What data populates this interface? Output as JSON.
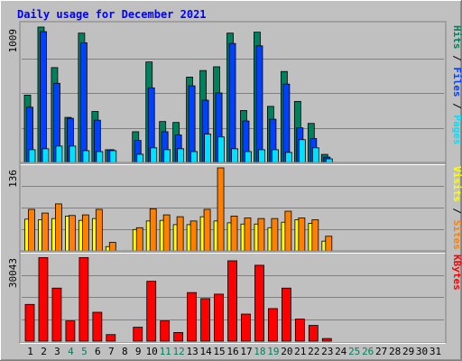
{
  "title": "Daily usage for December 2021",
  "days": [
    "1",
    "2",
    "3",
    "4",
    "5",
    "6",
    "7",
    "8",
    "9",
    "10",
    "11",
    "12",
    "13",
    "14",
    "15",
    "16",
    "17",
    "18",
    "19",
    "20",
    "21",
    "22",
    "23",
    "24",
    "25",
    "26",
    "27",
    "28",
    "29",
    "30",
    "31"
  ],
  "weekend_days": [
    "4",
    "5",
    "11",
    "12",
    "18",
    "19",
    "25",
    "26"
  ],
  "colors": {
    "background": "#C0C0C0",
    "title": "#0000FF",
    "weekday_label": "#000000",
    "weekend_label": "#00805C",
    "hits": "#00805C",
    "files": "#0040FF",
    "pages": "#00E0FF",
    "visits": "#FFFF00",
    "sites": "#FF8000",
    "kbytes": "#FF0000"
  },
  "chart_data": [
    {
      "type": "bar",
      "panel": "hits-files-pages",
      "ymax_label": "1009",
      "ylim": [
        0,
        1009
      ],
      "legend": {
        "pages": "Pages",
        "files": "Files",
        "hits": "Hits",
        "sep": "/"
      },
      "series": [
        {
          "name": "Hits",
          "key": "hits",
          "values": [
            502,
            1009,
            707,
            336,
            964,
            380,
            95,
            0,
            229,
            749,
            305,
            298,
            636,
            685,
            713,
            964,
            387,
            971,
            418,
            678,
            455,
            291,
            60,
            0,
            0,
            0,
            0,
            0,
            0,
            0,
            0
          ]
        },
        {
          "name": "Files",
          "key": "files",
          "values": [
            412,
            975,
            590,
            329,
            892,
            315,
            95,
            0,
            164,
            556,
            229,
            205,
            571,
            464,
            518,
            887,
            309,
            869,
            322,
            584,
            258,
            178,
            40,
            0,
            0,
            0,
            0,
            0,
            0,
            0,
            0
          ]
        },
        {
          "name": "Pages",
          "key": "pages",
          "values": [
            95,
            102,
            122,
            122,
            88,
            81,
            88,
            0,
            61,
            109,
            95,
            102,
            81,
            211,
            190,
            102,
            81,
            95,
            95,
            75,
            170,
            109,
            27,
            0,
            0,
            0,
            0,
            0,
            0,
            0,
            0
          ]
        }
      ]
    },
    {
      "type": "bar",
      "panel": "visits-sites",
      "ymax_label": "136",
      "ylim": [
        0,
        136
      ],
      "legend": {
        "sites": "Sites",
        "visits": "Visits",
        "sep": "/"
      },
      "series": [
        {
          "name": "Visits",
          "key": "visits",
          "values": [
            52,
            51,
            53,
            57,
            50,
            53,
            7,
            0,
            35,
            49,
            50,
            43,
            43,
            56,
            49,
            46,
            44,
            44,
            38,
            47,
            51,
            45,
            16,
            0,
            0,
            0,
            0,
            0,
            0,
            0,
            0
          ]
        },
        {
          "name": "Sites",
          "key": "sites",
          "values": [
            68,
            62,
            77,
            58,
            59,
            68,
            14,
            0,
            38,
            69,
            59,
            56,
            49,
            68,
            136,
            57,
            54,
            53,
            53,
            65,
            54,
            51,
            24,
            0,
            0,
            0,
            0,
            0,
            0,
            0,
            0
          ]
        }
      ]
    },
    {
      "type": "bar",
      "panel": "kbytes",
      "ymax_label": "30043",
      "ylim": [
        0,
        30043
      ],
      "legend": {
        "kbytes": "KBytes"
      },
      "series": [
        {
          "name": "KBytes",
          "key": "kbytes",
          "values": [
            13015,
            29577,
            18785,
            7162,
            29577,
            10232,
            2325,
            0,
            4928,
            21203,
            7162,
            3069,
            17204,
            15066,
            16647,
            28461,
            9581,
            26879,
            11534,
            18785,
            7813,
            5579,
            930,
            0,
            0,
            0,
            0,
            0,
            0,
            0,
            0
          ]
        }
      ]
    }
  ]
}
